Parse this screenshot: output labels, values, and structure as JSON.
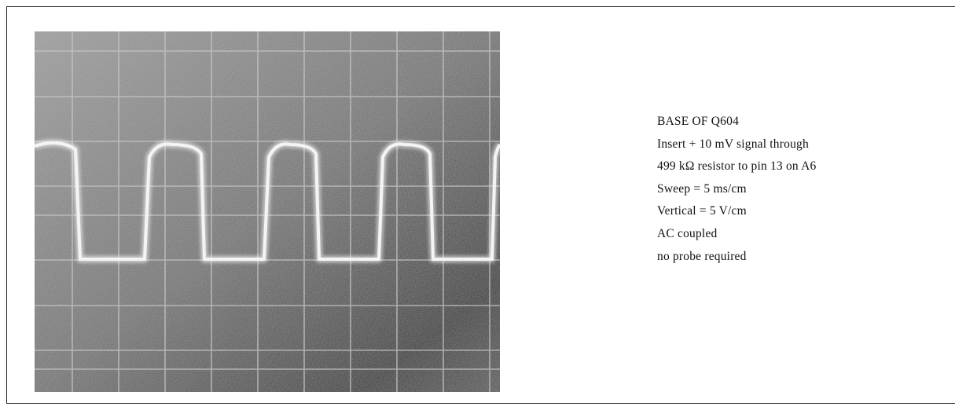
{
  "caption": {
    "lines": [
      "BASE OF Q604",
      "Insert + 10 mV signal through",
      "499 kΩ resistor to pin 13 on A6",
      "Sweep = 5 ms/cm",
      "Vertical = 5 V/cm",
      "AC coupled",
      "no probe required"
    ]
  }
}
